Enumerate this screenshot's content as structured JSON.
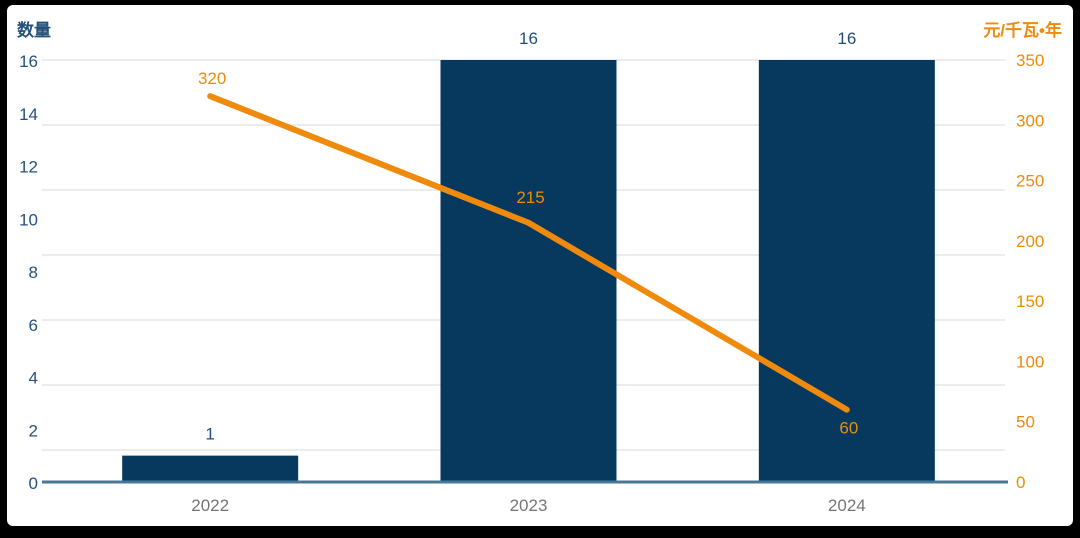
{
  "frame": {
    "background": "#000000",
    "card_background": "#ffffff"
  },
  "chart_data": {
    "type": "bar+line (dual axis)",
    "title": "",
    "categories": [
      "2022",
      "2023",
      "2024"
    ],
    "series": [
      {
        "name": "数量",
        "type": "bar",
        "axis": "left",
        "values": [
          1,
          16,
          16
        ],
        "color": "#07395f",
        "label_color": "#1f4e79"
      },
      {
        "name": "元/千瓦•年",
        "type": "line",
        "axis": "right",
        "values": [
          320,
          215,
          60
        ],
        "color": "#ef8a0c",
        "label_color": "#ef8a0c"
      }
    ],
    "left_axis": {
      "title": "数量",
      "min": 0,
      "max": 16,
      "tick_step": 2,
      "ticks": [
        "16",
        "14",
        "12",
        "10",
        "8",
        "6",
        "4",
        "2",
        "0"
      ],
      "color": "#24527a"
    },
    "right_axis": {
      "title": "元/千瓦•年",
      "min": 0,
      "max": 350,
      "tick_step": 50,
      "ticks": [
        "350",
        "300",
        "250",
        "200",
        "150",
        "100",
        "50",
        "0"
      ],
      "color": "#ef8a0c"
    },
    "x_axis": {
      "label_color": "#757575"
    },
    "grid": {
      "visible": true,
      "color": "#e9e9e9"
    },
    "axis_line_color": "#497798",
    "legend": "none"
  }
}
